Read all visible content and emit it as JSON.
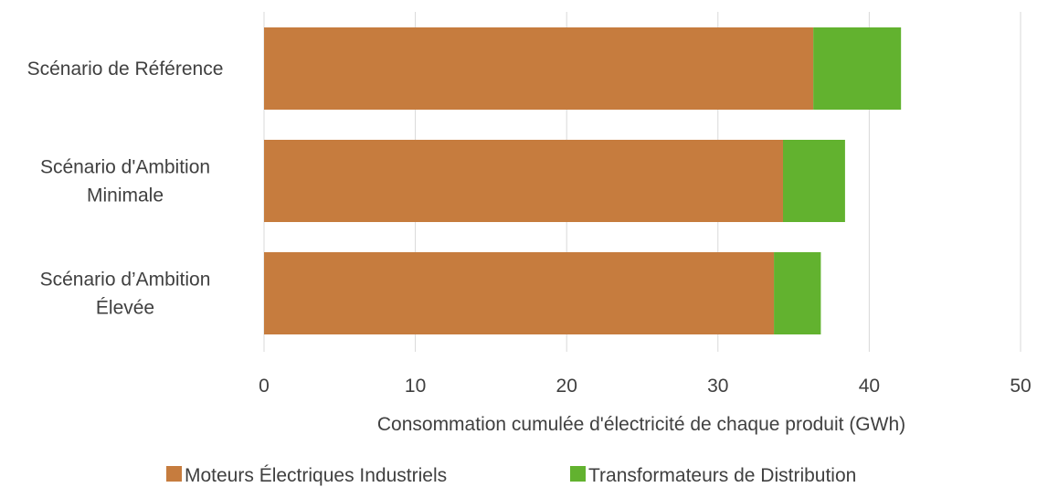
{
  "chart_data": {
    "type": "bar",
    "orientation": "horizontal",
    "stacked": true,
    "categories": [
      [
        "Scénario de Référence"
      ],
      [
        "Scénario d'Ambition",
        "Minimale"
      ],
      [
        "Scénario d’Ambition",
        "Élevée"
      ]
    ],
    "series": [
      {
        "name": "Moteurs Électriques Industriels",
        "color": "#C67C3E",
        "values": [
          36.3,
          34.3,
          33.7
        ]
      },
      {
        "name": "Transformateurs de Distribution",
        "color": "#62B22F",
        "values": [
          5.8,
          4.1,
          3.1
        ]
      }
    ],
    "xlabel": "Consommation cumulée d'électricité de chaque produit (GWh)",
    "xlim": [
      0,
      50
    ],
    "xticks": [
      0,
      10,
      20,
      30,
      40,
      50
    ],
    "grid": "vertical",
    "legend_position": "bottom",
    "gridline_color": "#D9D9D9",
    "text_color": "#404040"
  }
}
